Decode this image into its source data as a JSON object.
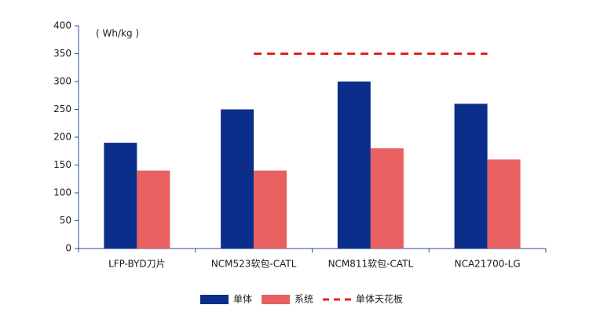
{
  "chart_data": {
    "type": "bar",
    "y_label": "( Wh/kg )",
    "categories": [
      "LFP-BYD刀片",
      "NCM523软包-CATL",
      "NCM811软包-CATL",
      "NCA21700-LG"
    ],
    "series": [
      {
        "name": "单体",
        "color": "#0b2e8a",
        "type": "bar",
        "values": [
          190,
          250,
          300,
          260
        ]
      },
      {
        "name": "系统",
        "color": "#e8605f",
        "type": "bar",
        "values": [
          140,
          140,
          180,
          160
        ]
      },
      {
        "name": "单体天花板",
        "color": "#e8201f",
        "type": "line",
        "line_style": "dashed",
        "values": [
          null,
          350,
          350,
          350
        ]
      }
    ],
    "ylim": [
      0,
      400
    ],
    "yticks": [
      0,
      50,
      100,
      150,
      200,
      250,
      300,
      350,
      400
    ],
    "grid": false,
    "legend": "bottom"
  }
}
